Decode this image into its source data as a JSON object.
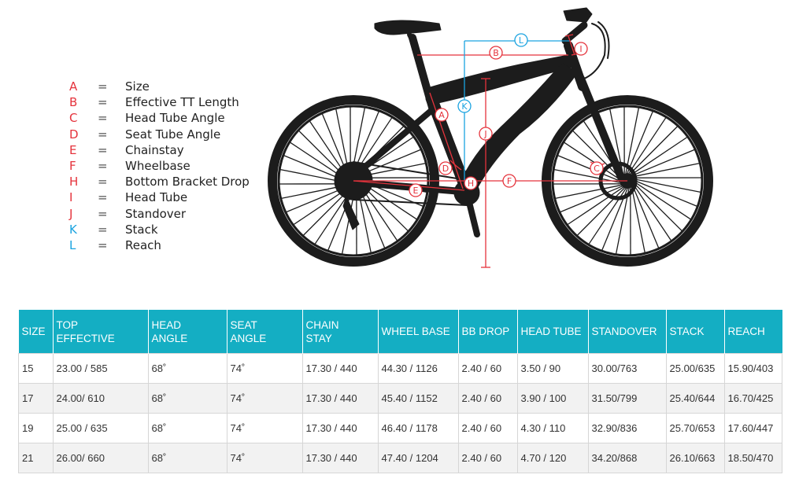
{
  "legend": [
    {
      "letter": "A",
      "label": "Size",
      "color": "#e5333c"
    },
    {
      "letter": "B",
      "label": "Effective TT Length",
      "color": "#e5333c"
    },
    {
      "letter": "C",
      "label": "Head Tube Angle",
      "color": "#e5333c"
    },
    {
      "letter": "D",
      "label": "Seat Tube Angle",
      "color": "#e5333c"
    },
    {
      "letter": "E",
      "label": "Chainstay",
      "color": "#e5333c"
    },
    {
      "letter": "F",
      "label": "Wheelbase",
      "color": "#e5333c"
    },
    {
      "letter": "H",
      "label": "Bottom Bracket Drop",
      "color": "#e5333c"
    },
    {
      "letter": "I",
      "label": "Head Tube",
      "color": "#e5333c"
    },
    {
      "letter": "J",
      "label": "Standover",
      "color": "#e5333c"
    },
    {
      "letter": "K",
      "label": "Stack",
      "color": "#1aa3e0"
    },
    {
      "letter": "L",
      "label": "Reach",
      "color": "#1aa3e0"
    }
  ],
  "legend_equals": "=",
  "diagram": {
    "markers": {
      "A": "A",
      "B": "B",
      "C": "C",
      "D": "D",
      "E": "E",
      "F": "F",
      "H": "H",
      "I": "I",
      "J": "J",
      "K": "K",
      "L": "L"
    },
    "measure_color_red": "#e5333c",
    "measure_color_blue": "#1aa3e0",
    "bike_color": "#1c1c1c"
  },
  "table": {
    "header_color": "#14aec3",
    "headers": [
      "SIZE",
      "TOP\nEFFECTIVE",
      "HEAD\nANGLE",
      "SEAT\nANGLE",
      "CHAIN\nSTAY",
      "WHEEL BASE",
      "BB DROP",
      "HEAD TUBE",
      "STANDOVER",
      "STACK",
      "REACH"
    ],
    "rows": [
      [
        "15",
        "23.00 / 585",
        "68˚",
        "74˚",
        "17.30 / 440",
        "44.30 / 1126",
        "2.40 / 60",
        "3.50 / 90",
        "30.00/763",
        "25.00/635",
        "15.90/403"
      ],
      [
        "17",
        "24.00/ 610",
        "68˚",
        "74˚",
        "17.30 / 440",
        "45.40 / 1152",
        "2.40 / 60",
        "3.90 / 100",
        "31.50/799",
        "25.40/644",
        "16.70/425"
      ],
      [
        "19",
        "25.00 / 635",
        "68˚",
        "74˚",
        "17.30 / 440",
        "46.40 / 1178",
        "2.40 / 60",
        "4.30 / 110",
        "32.90/836",
        "25.70/653",
        "17.60/447"
      ],
      [
        "21",
        "26.00/ 660",
        "68˚",
        "74˚",
        "17.30 / 440",
        "47.40 / 1204",
        "2.40 / 60",
        "4.70 / 120",
        "34.20/868",
        "26.10/663",
        "18.50/470"
      ]
    ]
  }
}
